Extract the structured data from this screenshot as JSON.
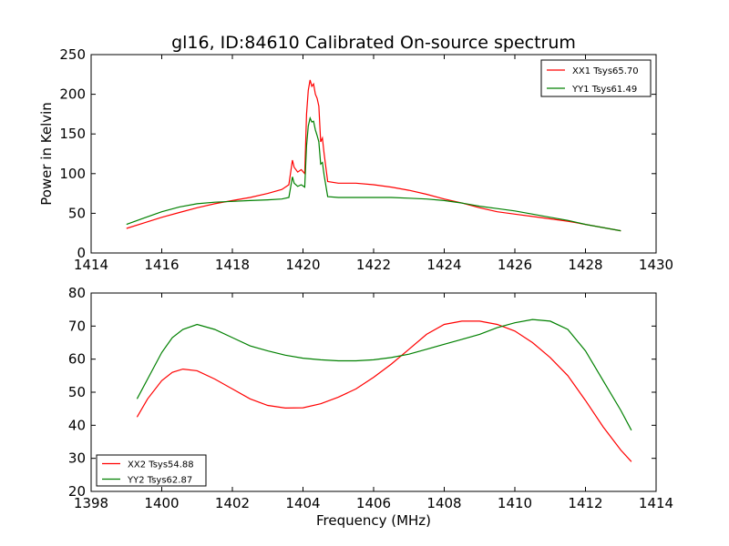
{
  "figure": {
    "title": "gl16, ID:84610 Calibrated On-source spectrum",
    "xlabel": "Frequency (MHz)"
  },
  "colors": {
    "xx": "#ff0000",
    "yy": "#008000"
  },
  "chart_data": [
    {
      "type": "line",
      "ylabel": "Power in Kelvin",
      "xlim": [
        1414,
        1430
      ],
      "ylim": [
        0,
        250
      ],
      "xticks": [
        1414,
        1416,
        1418,
        1420,
        1422,
        1424,
        1426,
        1428,
        1430
      ],
      "yticks": [
        0,
        50,
        100,
        150,
        200,
        250
      ],
      "grid": false,
      "legend": "top-right",
      "series": [
        {
          "name": "XX1 Tsys65.70",
          "color": "#ff0000",
          "x": [
            1415.0,
            1415.5,
            1416.0,
            1416.5,
            1417.0,
            1417.5,
            1418.0,
            1418.5,
            1419.0,
            1419.4,
            1419.6,
            1419.7,
            1419.75,
            1419.85,
            1419.95,
            1420.05,
            1420.1,
            1420.15,
            1420.2,
            1420.25,
            1420.3,
            1420.35,
            1420.4,
            1420.45,
            1420.5,
            1420.55,
            1420.6,
            1420.7,
            1421.0,
            1421.5,
            1422.0,
            1422.5,
            1423.0,
            1423.5,
            1424.0,
            1424.5,
            1425.0,
            1425.5,
            1426.0,
            1426.5,
            1427.0,
            1427.5,
            1428.0,
            1428.5,
            1429.0
          ],
          "values": [
            31,
            38,
            45,
            51,
            57,
            62,
            66,
            70,
            75,
            80,
            86,
            117,
            108,
            102,
            105,
            100,
            175,
            205,
            218,
            210,
            213,
            200,
            195,
            185,
            140,
            145,
            125,
            90,
            88,
            88,
            86,
            83,
            79,
            74,
            68,
            63,
            57,
            52,
            49,
            46,
            43,
            40,
            36,
            32,
            28
          ]
        },
        {
          "name": "YY1 Tsys61.49",
          "color": "#008000",
          "x": [
            1415.0,
            1415.5,
            1416.0,
            1416.5,
            1417.0,
            1417.5,
            1418.0,
            1418.5,
            1419.0,
            1419.4,
            1419.6,
            1419.7,
            1419.75,
            1419.85,
            1419.95,
            1420.05,
            1420.1,
            1420.15,
            1420.2,
            1420.25,
            1420.3,
            1420.35,
            1420.4,
            1420.45,
            1420.5,
            1420.55,
            1420.6,
            1420.7,
            1421.0,
            1421.5,
            1422.0,
            1422.5,
            1423.0,
            1423.5,
            1424.0,
            1424.5,
            1425.0,
            1425.5,
            1426.0,
            1426.5,
            1427.0,
            1427.5,
            1428.0,
            1428.5,
            1429.0
          ],
          "values": [
            36,
            44,
            52,
            58,
            62,
            64,
            65,
            66,
            67,
            68,
            70,
            96,
            88,
            84,
            86,
            83,
            135,
            160,
            170,
            165,
            166,
            155,
            148,
            140,
            112,
            114,
            98,
            71,
            70,
            70,
            70,
            70,
            69,
            68,
            66,
            63,
            59,
            56,
            53,
            49,
            45,
            41,
            36,
            32,
            28
          ]
        }
      ]
    },
    {
      "type": "line",
      "ylabel": "",
      "xlim": [
        1398,
        1414
      ],
      "ylim": [
        20,
        80
      ],
      "xticks": [
        1398,
        1400,
        1402,
        1404,
        1406,
        1408,
        1410,
        1412,
        1414
      ],
      "yticks": [
        20,
        30,
        40,
        50,
        60,
        70,
        80
      ],
      "grid": false,
      "legend": "bottom-left",
      "series": [
        {
          "name": "XX2 Tsys54.88",
          "color": "#ff0000",
          "x": [
            1399.3,
            1399.6,
            1400.0,
            1400.3,
            1400.6,
            1401.0,
            1401.5,
            1402.0,
            1402.5,
            1403.0,
            1403.5,
            1404.0,
            1404.5,
            1405.0,
            1405.5,
            1406.0,
            1406.5,
            1407.0,
            1407.5,
            1408.0,
            1408.5,
            1409.0,
            1409.5,
            1410.0,
            1410.5,
            1411.0,
            1411.5,
            1412.0,
            1412.5,
            1413.0,
            1413.3
          ],
          "values": [
            42.5,
            48,
            53.5,
            56,
            57,
            56.5,
            54,
            51,
            48,
            46,
            45.2,
            45.3,
            46.5,
            48.5,
            51,
            54.5,
            58.5,
            63,
            67.5,
            70.5,
            71.5,
            71.5,
            70.5,
            68.5,
            65,
            60.5,
            55,
            47.5,
            39.5,
            32.5,
            29
          ]
        },
        {
          "name": "YY2 Tsys62.87",
          "color": "#008000",
          "x": [
            1399.3,
            1399.6,
            1400.0,
            1400.3,
            1400.6,
            1401.0,
            1401.5,
            1402.0,
            1402.5,
            1403.0,
            1403.5,
            1404.0,
            1404.5,
            1405.0,
            1405.5,
            1406.0,
            1406.5,
            1407.0,
            1407.5,
            1408.0,
            1408.5,
            1409.0,
            1409.5,
            1410.0,
            1410.5,
            1411.0,
            1411.5,
            1412.0,
            1412.5,
            1413.0,
            1413.3
          ],
          "values": [
            48,
            54,
            62,
            66.5,
            69,
            70.5,
            69,
            66.5,
            64,
            62.5,
            61.2,
            60.3,
            59.8,
            59.5,
            59.5,
            59.8,
            60.5,
            61.5,
            63,
            64.5,
            66,
            67.5,
            69.5,
            71,
            72,
            71.5,
            69,
            62.5,
            53.5,
            44.5,
            38.5
          ]
        }
      ]
    }
  ]
}
